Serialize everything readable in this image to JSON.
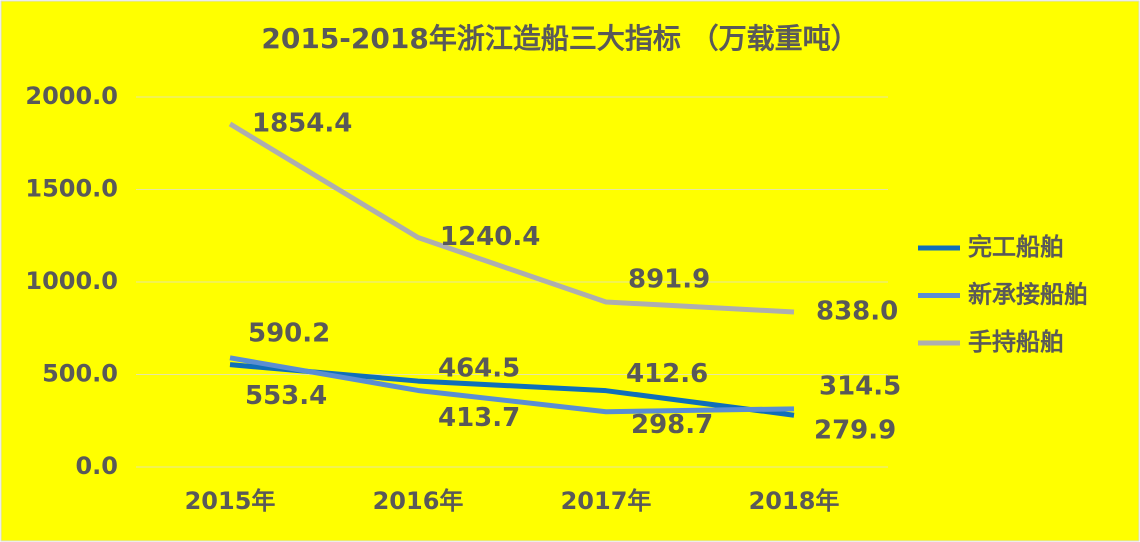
{
  "chart_data": {
    "type": "line",
    "title": "2015-2018年浙江造船三大指标 （万载重吨）",
    "categories": [
      "2015年",
      "2016年",
      "2017年",
      "2018年"
    ],
    "series": [
      {
        "name": "完工船舶",
        "color": "#0f6fb8",
        "values": [
          553.4,
          464.5,
          412.6,
          279.9
        ],
        "value_labels": [
          "553.4",
          "464.5",
          "412.6",
          "279.9"
        ]
      },
      {
        "name": "新承接船舶",
        "color": "#5a8ed2",
        "values": [
          590.2,
          413.7,
          298.7,
          314.5
        ],
        "value_labels": [
          "590.2",
          "413.7",
          "298.7",
          "314.5"
        ]
      },
      {
        "name": "手持船舶",
        "color": "#aeaeae",
        "values": [
          1854.4,
          1240.4,
          891.9,
          838.0
        ],
        "value_labels": [
          "1854.4",
          "1240.4",
          "891.9",
          "838.0"
        ]
      }
    ],
    "ylim": [
      0,
      2000
    ],
    "yticks": [
      {
        "value": 0,
        "label": "0.0"
      },
      {
        "value": 500,
        "label": "500.0"
      },
      {
        "value": 1000,
        "label": "1000.0"
      },
      {
        "value": 1500,
        "label": "1500.0"
      },
      {
        "value": 2000,
        "label": "2000.0"
      }
    ],
    "grid": true,
    "legend": "right"
  }
}
